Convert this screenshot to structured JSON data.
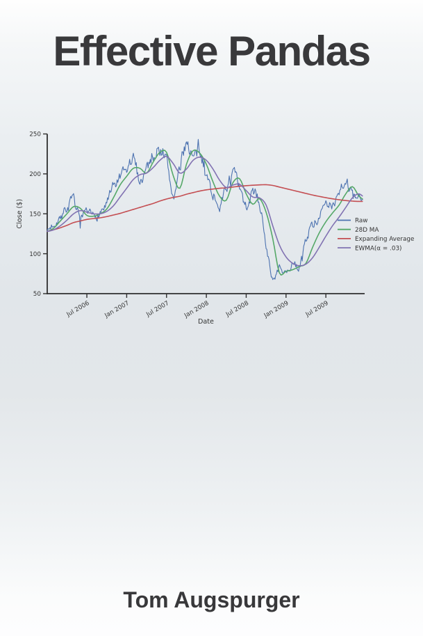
{
  "cover": {
    "title": "Effective Pandas",
    "author": "Tom Augspurger",
    "title_color": "#39393b",
    "background_top": "#fefefe",
    "background_middle": "#e1e6ea",
    "background_bottom": "#fdfdfe"
  },
  "chart_data": {
    "type": "line",
    "title": "",
    "xlabel": "Date",
    "ylabel": "Close ($)",
    "ylim": [
      50,
      250
    ],
    "yticks": [
      50,
      100,
      150,
      200,
      250
    ],
    "xtick_labels": [
      "Jul 2006",
      "Jan 2007",
      "Jul 2007",
      "Jan 2008",
      "Jul 2008",
      "Jan 2009",
      "Jul 2009"
    ],
    "xtick_months": [
      6,
      12,
      18,
      24,
      30,
      36,
      42
    ],
    "x_start": "Jan 2006",
    "x_end": "Dec 2009",
    "x_range_months": [
      0,
      47.6
    ],
    "grid": false,
    "axis_color": "#2e2e2e",
    "text_color": "#333333",
    "legend": {
      "position": "center right",
      "frame": false,
      "entries": [
        "Raw",
        "28D MA",
        "Expanding Average",
        "EWMA(α = .03)"
      ]
    },
    "series": [
      {
        "name": "Raw",
        "color": "#4C72B0",
        "linewidth": 1.1,
        "monthly_values": [
          128,
          138,
          146,
          157,
          166,
          143,
          149,
          147,
          152,
          163,
          182,
          194,
          203,
          218,
          193,
          208,
          224,
          232,
          216,
          174,
          205,
          240,
          220,
          226,
          198,
          176,
          160,
          182,
          201,
          180,
          158,
          176,
          162,
          112,
          68,
          82,
          74,
          88,
          84,
          118,
          136,
          147,
          158,
          162,
          180,
          191,
          172,
          166,
          168
        ]
      },
      {
        "name": "28D MA",
        "color": "#55A868",
        "linewidth": 1.6,
        "monthly_values": [
          128,
          132,
          141,
          150,
          159,
          157,
          148,
          147,
          150,
          156,
          170,
          186,
          197,
          207,
          207,
          201,
          215,
          227,
          227,
          198,
          182,
          212,
          229,
          226,
          212,
          190,
          172,
          167,
          189,
          194,
          175,
          162,
          169,
          152,
          119,
          76,
          78,
          80,
          84,
          88,
          108,
          126,
          140,
          151,
          161,
          175,
          184,
          172,
          167
        ]
      },
      {
        "name": "Expanding Average",
        "color": "#C44E52",
        "linewidth": 1.6,
        "monthly_values": [
          128,
          130,
          132.5,
          135.5,
          139,
          141,
          143,
          144,
          145,
          146.5,
          148.5,
          150.5,
          153,
          155.5,
          158,
          160.5,
          163,
          166,
          168.5,
          170.5,
          172,
          174.5,
          176.5,
          178.5,
          180,
          181,
          182,
          182.5,
          183.5,
          184.5,
          185.2,
          185.8,
          186.2,
          186.4,
          185.5,
          183.5,
          181.5,
          179.5,
          177.5,
          175.5,
          173.5,
          171.8,
          170.2,
          168.8,
          167.6,
          166.6,
          165.9,
          165.5,
          165.6
        ]
      },
      {
        "name": "EWMA(α = .03)",
        "color": "#8172B2",
        "linewidth": 1.6,
        "monthly_values": [
          128,
          130,
          135,
          142,
          150,
          154,
          152,
          150,
          150,
          153,
          160,
          171,
          182,
          193,
          199,
          201,
          208,
          217,
          222,
          213,
          201,
          206,
          217,
          221,
          217,
          206,
          192,
          183,
          186,
          187,
          179,
          171,
          170,
          161,
          135,
          111,
          96,
          88,
          85,
          87,
          95,
          108,
          122,
          135,
          146,
          158,
          170,
          175,
          169
        ]
      }
    ],
    "raw_noise": {
      "seed": 7,
      "points_per_month": 9,
      "base_amplitude": 1.6,
      "relative_amplitude": 0.033
    }
  }
}
